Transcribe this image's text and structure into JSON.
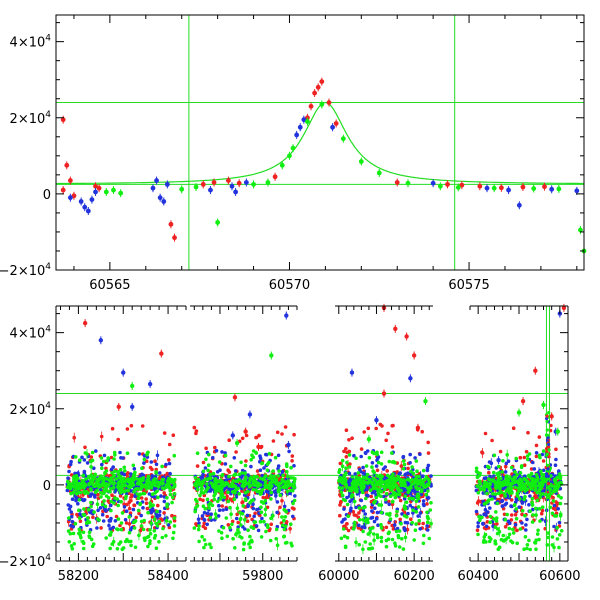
{
  "colors": {
    "red": "#ee2222",
    "blue": "#2233dd",
    "green": "#11ee11",
    "fit": "#22dd22",
    "axis": "#000000"
  },
  "chart_data": [
    {
      "type": "scatter",
      "title": "",
      "xlabel": "",
      "ylabel": "",
      "xlim": [
        60563.5,
        60578.2
      ],
      "ylim": [
        -20000,
        47000
      ],
      "xticks": [
        60565,
        60570,
        60575
      ],
      "xtick_labels": [
        "60565",
        "60570",
        "60575"
      ],
      "yticks": [
        -20000,
        0,
        20000,
        40000
      ],
      "ytick_labels": [
        {
          "base": "−2×10",
          "exp": "4"
        },
        {
          "base": "0",
          "exp": ""
        },
        {
          "base": "2×10",
          "exp": "4"
        },
        {
          "base": "4×10",
          "exp": "4"
        }
      ],
      "reference_lines": {
        "horizontal": [
          2500,
          24000
        ],
        "vertical": [
          60567.2,
          60574.6
        ]
      },
      "model_curve": {
        "name": "",
        "t0": 60571.0,
        "baseline": 2500,
        "peak": 24000,
        "width": 0.75
      },
      "series": [
        {
          "name": "",
          "color": "red",
          "points": [
            [
              60563.7,
              19500
            ],
            [
              60563.8,
              7500
            ],
            [
              60563.9,
              3500
            ],
            [
              60563.7,
              1000
            ],
            [
              60564.0,
              -500
            ],
            [
              60564.6,
              2000
            ],
            [
              60564.7,
              1500
            ],
            [
              60566.7,
              -8000
            ],
            [
              60566.8,
              -11500
            ],
            [
              60567.6,
              2500
            ],
            [
              60567.9,
              3000
            ],
            [
              60568.3,
              3500
            ],
            [
              60568.6,
              2800
            ],
            [
              60569.6,
              4500
            ],
            [
              60570.5,
              20000
            ],
            [
              60570.6,
              23000
            ],
            [
              60570.7,
              26500
            ],
            [
              60570.8,
              28000
            ],
            [
              60570.9,
              29500
            ],
            [
              60571.1,
              24000
            ],
            [
              60571.3,
              18500
            ],
            [
              60573.0,
              3000
            ],
            [
              60574.4,
              2500
            ],
            [
              60574.8,
              2300
            ],
            [
              60575.3,
              2000
            ],
            [
              60575.9,
              1600
            ],
            [
              60576.5,
              1800
            ],
            [
              60577.1,
              1900
            ]
          ]
        },
        {
          "name": "",
          "color": "blue",
          "points": [
            [
              60563.9,
              -1000
            ],
            [
              60564.2,
              -2000
            ],
            [
              60564.3,
              -3500
            ],
            [
              60564.4,
              -4500
            ],
            [
              60564.5,
              -1500
            ],
            [
              60564.6,
              500
            ],
            [
              60566.2,
              1500
            ],
            [
              60566.3,
              3500
            ],
            [
              60566.4,
              -1000
            ],
            [
              60566.5,
              -2000
            ],
            [
              60566.6,
              2500
            ],
            [
              60567.8,
              1000
            ],
            [
              60568.4,
              2000
            ],
            [
              60568.5,
              500
            ],
            [
              60568.8,
              3000
            ],
            [
              60570.2,
              15500
            ],
            [
              60570.3,
              17500
            ],
            [
              60570.4,
              19500
            ],
            [
              60571.2,
              17500
            ],
            [
              60574.0,
              2800
            ],
            [
              60575.5,
              1500
            ],
            [
              60576.1,
              1000
            ],
            [
              60576.4,
              -3000
            ],
            [
              60577.3,
              1200
            ],
            [
              60578.0,
              800
            ]
          ]
        },
        {
          "name": "",
          "color": "green",
          "points": [
            [
              60564.9,
              500
            ],
            [
              60565.1,
              1000
            ],
            [
              60565.3,
              200
            ],
            [
              60567.0,
              1200
            ],
            [
              60567.4,
              1800
            ],
            [
              60568.0,
              -7500
            ],
            [
              60569.0,
              2500
            ],
            [
              60569.4,
              3000
            ],
            [
              60569.8,
              7500
            ],
            [
              60570.0,
              10000
            ],
            [
              60570.1,
              12000
            ],
            [
              60570.5,
              19000
            ],
            [
              60570.9,
              23500
            ],
            [
              60571.5,
              14500
            ],
            [
              60572.0,
              8500
            ],
            [
              60572.5,
              5500
            ],
            [
              60573.3,
              2800
            ],
            [
              60574.2,
              2000
            ],
            [
              60574.7,
              1700
            ],
            [
              60575.7,
              1500
            ],
            [
              60576.8,
              1400
            ],
            [
              60577.5,
              1300
            ],
            [
              60578.1,
              -9500
            ],
            [
              60578.2,
              -15000
            ]
          ]
        }
      ]
    },
    {
      "type": "scatter",
      "title": "",
      "xlabel": "",
      "ylabel": "",
      "note": "broken x-axis with four seasonal segments",
      "segments": [
        {
          "xlim": [
            58150,
            58440
          ],
          "xticks": [
            58200,
            58300,
            58400
          ],
          "xtick_labels": [
            "58200",
            "",
            "58400"
          ]
        },
        {
          "xlim": [
            59630,
            59880
          ],
          "xticks": [
            59700,
            59800
          ],
          "xtick_labels": [
            "",
            "59800"
          ]
        },
        {
          "xlim": [
            59990,
            60250
          ],
          "xticks": [
            60000,
            60100,
            60200
          ],
          "xtick_labels": [
            "60000",
            "",
            "60200"
          ]
        },
        {
          "xlim": [
            60380,
            60620
          ],
          "xticks": [
            60400,
            60500,
            60600
          ],
          "xtick_labels": [
            "60400",
            "",
            "60600"
          ]
        }
      ],
      "ylim": [
        -20000,
        47000
      ],
      "yticks": [
        -20000,
        0,
        20000,
        40000
      ],
      "ytick_labels": [
        {
          "base": "−2×10",
          "exp": "4"
        },
        {
          "base": "0",
          "exp": ""
        },
        {
          "base": "2×10",
          "exp": "4"
        },
        {
          "base": "4×10",
          "exp": "4"
        }
      ],
      "reference_lines": {
        "horizontal": [
          2500,
          24000
        ],
        "vertical": [
          60567.2,
          60574.6
        ]
      },
      "outliers": {
        "red": [
          [
            58215,
            42500
          ],
          [
            58290,
            20500
          ],
          [
            58385,
            34500
          ],
          [
            59735,
            23000
          ],
          [
            59760,
            14000
          ],
          [
            59790,
            10000
          ],
          [
            60120,
            48000
          ],
          [
            60150,
            41000
          ],
          [
            60180,
            39000
          ],
          [
            60200,
            34000
          ],
          [
            60120,
            24000
          ],
          [
            60210,
            15000
          ],
          [
            60510,
            22000
          ],
          [
            60540,
            30000
          ],
          [
            60580,
            18000
          ],
          [
            60610,
            47000
          ]
        ],
        "blue": [
          [
            58250,
            38000
          ],
          [
            58300,
            29500
          ],
          [
            58360,
            26500
          ],
          [
            58320,
            20500
          ],
          [
            59730,
            13000
          ],
          [
            59770,
            18500
          ],
          [
            59855,
            44500
          ],
          [
            59860,
            10500
          ],
          [
            60035,
            29500
          ],
          [
            60190,
            28000
          ],
          [
            60100,
            17000
          ],
          [
            60450,
            6500
          ],
          [
            60590,
            14000
          ],
          [
            60600,
            45000
          ]
        ],
        "green": [
          [
            58320,
            26000
          ],
          [
            59820,
            34000
          ],
          [
            59740,
            11000
          ],
          [
            60080,
            12000
          ],
          [
            60230,
            22000
          ],
          [
            60500,
            19000
          ],
          [
            60560,
            21000
          ],
          [
            60595,
            14000
          ]
        ]
      }
    }
  ]
}
